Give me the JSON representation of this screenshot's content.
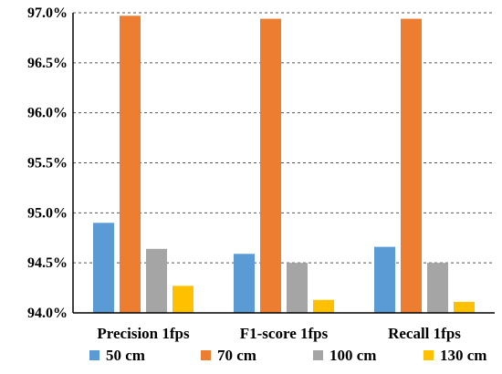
{
  "chart_data": {
    "type": "bar",
    "title": "",
    "xlabel": "",
    "ylabel": "",
    "ylim": [
      94.0,
      97.0
    ],
    "y_ticks": [
      94.0,
      94.5,
      95.0,
      95.5,
      96.0,
      96.5,
      97.0
    ],
    "y_tick_labels": [
      "94.0%",
      "94.5%",
      "95.0%",
      "95.5%",
      "96.0%",
      "96.5%",
      "97.0%"
    ],
    "grid": "horizontal-dashed",
    "legend_position": "bottom",
    "categories": [
      "Precision 1fps",
      "F1-score 1fps",
      "Recall 1fps"
    ],
    "series": [
      {
        "name": "50 cm",
        "color": "#5B9BD5",
        "values": [
          94.9,
          94.59,
          94.66
        ]
      },
      {
        "name": "70 cm",
        "color": "#ED7D31",
        "values": [
          96.97,
          96.94,
          96.94
        ]
      },
      {
        "name": "100 cm",
        "color": "#A5A5A5",
        "values": [
          94.64,
          94.5,
          94.5
        ]
      },
      {
        "name": "130 cm",
        "color": "#FFC000",
        "values": [
          94.27,
          94.13,
          94.11
        ]
      }
    ]
  }
}
